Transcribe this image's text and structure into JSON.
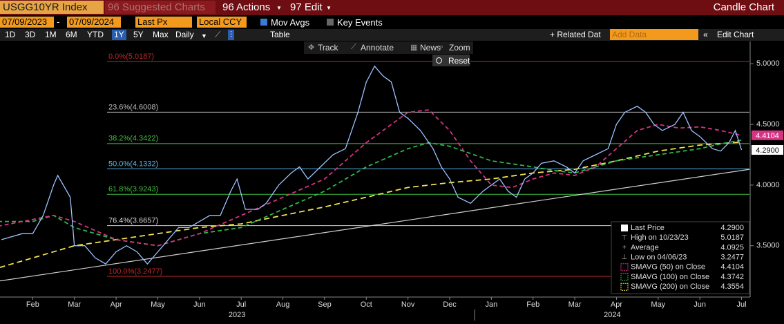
{
  "header": {
    "ticker": "USGG10YR Index",
    "suggested": "96 Suggested Charts",
    "actions": "96 Actions",
    "edit": "97 Edit",
    "chart_type": "Candle Chart"
  },
  "toolbar": {
    "start_date": "07/09/2023",
    "end_date": "07/09/2024",
    "field": "Last Px",
    "currency": "Local CCY",
    "mov_avgs": "Mov Avgs",
    "key_events": "Key Events"
  },
  "periods": [
    "1D",
    "3D",
    "1M",
    "6M",
    "YTD",
    "1Y",
    "5Y",
    "Max"
  ],
  "active_period": "1Y",
  "frequency": "Daily",
  "table": "Table",
  "related": "+ Related Dat",
  "add_data": "Add Data",
  "edit_chart": "Edit Chart",
  "tools": [
    "Track",
    "Annotate",
    "News",
    "Zoom"
  ],
  "reset": "Reset",
  "chart_data": {
    "type": "line",
    "xlim": [
      0.215,
      18.19
    ],
    "ylim": [
      3.077,
      5.184
    ],
    "xticks": [
      {
        "value": 1,
        "label": "Feb"
      },
      {
        "value": 2,
        "label": "Mar"
      },
      {
        "value": 3,
        "label": "Apr"
      },
      {
        "value": 4,
        "label": "May"
      },
      {
        "value": 5,
        "label": "Jun"
      },
      {
        "value": 6,
        "label": "Jul"
      },
      {
        "value": 7,
        "label": "Aug"
      },
      {
        "value": 8,
        "label": "Sep"
      },
      {
        "value": 9,
        "label": "Oct"
      },
      {
        "value": 10,
        "label": "Nov"
      },
      {
        "value": 11,
        "label": "Dec"
      },
      {
        "value": 12,
        "label": "Jan"
      },
      {
        "value": 13,
        "label": "Feb"
      },
      {
        "value": 14,
        "label": "Mar"
      },
      {
        "value": 15,
        "label": "Apr"
      },
      {
        "value": 16,
        "label": "May"
      },
      {
        "value": 17,
        "label": "Jun"
      },
      {
        "value": 18,
        "label": "Jul"
      }
    ],
    "years": [
      {
        "value": 5.9,
        "label": "2023"
      },
      {
        "value": 14.9,
        "label": "2024"
      }
    ],
    "yticks": [
      {
        "value": 3.5,
        "label": "3.5000"
      },
      {
        "value": 4,
        "label": "4.0000"
      },
      {
        "value": 4.5,
        "label": "4.5000"
      },
      {
        "value": 5,
        "label": "5.0000"
      }
    ],
    "series": [
      {
        "color": "#9cc3ff",
        "dash": "none",
        "x": [
          0.25,
          0.75,
          1.0,
          1.25,
          1.5,
          1.6,
          1.9,
          2.0,
          2.25,
          2.5,
          2.75,
          3.0,
          3.25,
          3.5,
          3.75,
          4.0,
          4.25,
          4.5,
          4.75,
          5.0,
          5.25,
          5.5,
          5.75,
          5.9,
          6.1,
          6.4,
          6.6,
          6.9,
          7.2,
          7.4,
          7.6,
          7.9,
          8.2,
          8.5,
          8.8,
          9.0,
          9.2,
          9.4,
          9.6,
          9.8,
          10.0,
          10.3,
          10.6,
          10.8,
          11.0,
          11.2,
          11.5,
          11.8,
          12.0,
          12.2,
          12.4,
          12.6,
          12.8,
          13.0,
          13.2,
          13.5,
          13.8,
          14.0,
          14.2,
          14.5,
          14.8,
          15.0,
          15.2,
          15.5,
          15.7,
          15.9,
          16.1,
          16.4,
          16.6,
          16.8,
          17.0,
          17.3,
          17.5,
          17.7,
          17.85,
          18.0
        ],
        "values": [
          3.55,
          3.6,
          3.6,
          3.75,
          4.0,
          4.08,
          3.9,
          3.5,
          3.5,
          3.4,
          3.35,
          3.45,
          3.5,
          3.45,
          3.35,
          3.45,
          3.55,
          3.65,
          3.65,
          3.7,
          3.75,
          3.75,
          3.95,
          4.05,
          3.8,
          3.8,
          3.85,
          4.0,
          4.1,
          4.15,
          4.05,
          4.15,
          4.25,
          4.3,
          4.6,
          4.85,
          4.98,
          4.9,
          4.85,
          4.6,
          4.55,
          4.45,
          4.3,
          4.15,
          4.05,
          3.9,
          3.85,
          3.95,
          4.0,
          4.05,
          3.95,
          3.9,
          4.05,
          4.1,
          4.18,
          4.2,
          4.15,
          4.1,
          4.2,
          4.25,
          4.3,
          4.5,
          4.6,
          4.65,
          4.6,
          4.5,
          4.45,
          4.5,
          4.6,
          4.45,
          4.4,
          4.3,
          4.28,
          4.35,
          4.45,
          4.29
        ]
      },
      {
        "color": "#d63384",
        "dash": "6 4",
        "x": [
          0,
          1.5,
          2,
          3,
          4,
          5,
          6,
          7,
          8,
          9,
          10,
          10.5,
          11,
          11.5,
          12,
          12.5,
          13,
          13.5,
          14,
          14.5,
          15,
          15.5,
          16,
          16.5,
          17,
          17.5,
          18
        ],
        "values": [
          3.65,
          3.75,
          3.7,
          3.55,
          3.5,
          3.6,
          3.75,
          3.9,
          4.05,
          4.35,
          4.6,
          4.62,
          4.45,
          4.2,
          4.0,
          3.98,
          4.05,
          4.1,
          4.08,
          4.15,
          4.3,
          4.45,
          4.5,
          4.47,
          4.48,
          4.45,
          4.41
        ]
      },
      {
        "color": "#2db84d",
        "dash": "6 4",
        "x": [
          0,
          1,
          1.5,
          2,
          3,
          4,
          5,
          6,
          7,
          8,
          9,
          10,
          10.5,
          11,
          12,
          13,
          13.5,
          14,
          14.5,
          15,
          16,
          17,
          17.5,
          18
        ],
        "values": [
          3.7,
          3.7,
          3.75,
          3.65,
          3.55,
          3.5,
          3.6,
          3.65,
          3.8,
          3.95,
          4.15,
          4.3,
          4.35,
          4.32,
          4.2,
          4.15,
          4.12,
          4.1,
          4.15,
          4.2,
          4.25,
          4.3,
          4.34,
          4.37
        ]
      },
      {
        "color": "#f2e34a",
        "dash": "8 5",
        "x": [
          0,
          1,
          2,
          3,
          4,
          5,
          6,
          7,
          8,
          9,
          10,
          11,
          12,
          13,
          14,
          15,
          16,
          17,
          18
        ],
        "values": [
          3.3,
          3.4,
          3.5,
          3.55,
          3.6,
          3.65,
          3.68,
          3.75,
          3.82,
          3.9,
          3.98,
          4.02,
          4.05,
          4.1,
          4.13,
          4.2,
          4.28,
          4.33,
          4.355
        ]
      }
    ],
    "trendline": {
      "color": "#d0d0d0",
      "x": [
        0.215,
        18.19
      ],
      "values": [
        3.21,
        4.13
      ]
    },
    "fib_levels": [
      {
        "label": "0.0%(5.0187)",
        "value": 5.0187,
        "color": "#c0282d"
      },
      {
        "label": "23.6%(4.6008)",
        "value": 4.6008,
        "color": "#bdbdbd"
      },
      {
        "label": "38.2%(4.3422)",
        "value": 4.3422,
        "color": "#3fbf3f"
      },
      {
        "label": "50.0%(4.1332)",
        "value": 4.1332,
        "color": "#5fb6e8"
      },
      {
        "label": "61.8%(3.9243)",
        "value": 3.9243,
        "color": "#3fbf3f"
      },
      {
        "label": "76.4%(3.6657)",
        "value": 3.6657,
        "color": "#d8d8d8"
      },
      {
        "label": "100.0%(3.2477)",
        "value": 3.2477,
        "color": "#c0282d"
      }
    ],
    "stats": [
      {
        "label": "Last Price",
        "value": 4.29,
        "value_label": "4.2900",
        "series": 0,
        "tag": true
      },
      {
        "label": "High on 10/23/23",
        "value": 5.0187,
        "value_label": "5.0187"
      },
      {
        "label": "Average",
        "value": 4.0925,
        "value_label": "4.0925"
      },
      {
        "label": "Low on 04/06/23",
        "value": 3.2477,
        "value_label": "3.2477"
      },
      {
        "label": "SMAVG (50)  on Close",
        "value": 4.4104,
        "value_label": "4.4104",
        "series": 1,
        "tag": true
      },
      {
        "label": "SMAVG (100)  on Close",
        "value": 4.3742,
        "value_label": "4.3742",
        "series": 2
      },
      {
        "label": "SMAVG (200)  on Close",
        "value": 4.3554,
        "value_label": "4.3554",
        "series": 3
      }
    ]
  }
}
